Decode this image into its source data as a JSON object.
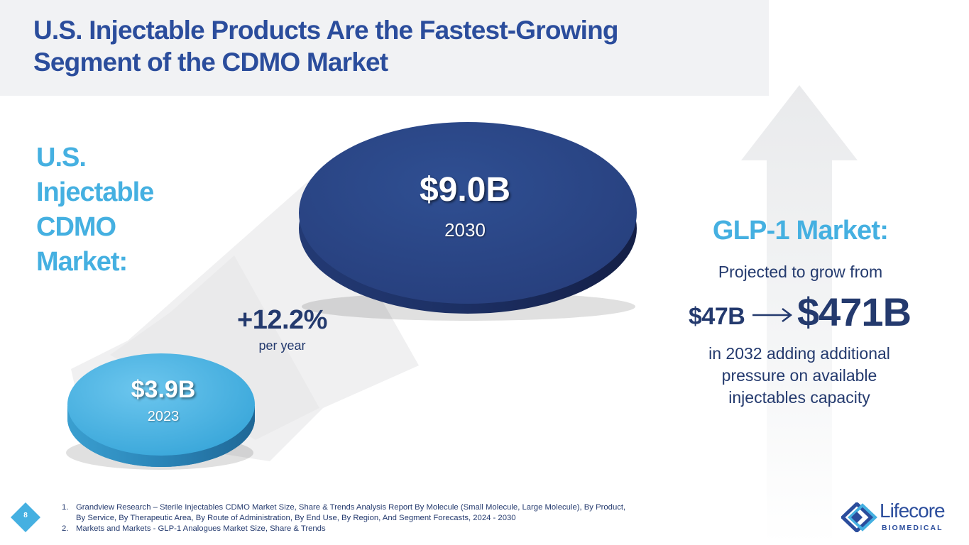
{
  "slide": {
    "title_line1": "U.S. Injectable Products Are the Fastest-Growing",
    "title_line2": "Segment of the CDMO Market",
    "page_number": "8"
  },
  "market": {
    "label_lines": [
      "U.S.",
      "Injectable",
      "CDMO",
      "Market:"
    ],
    "start": {
      "value": "$3.9B",
      "year": "2023",
      "color": "#45b0e1"
    },
    "end": {
      "value": "$9.0B",
      "year": "2030",
      "color": "#2b4585"
    },
    "growth": {
      "rate": "+12.2%",
      "period": "per year"
    }
  },
  "glp1": {
    "title": "GLP-1 Market:",
    "subtitle": "Projected to grow from",
    "from_value": "$47B",
    "to_value": "$471B",
    "desc_lines": [
      "in 2032 adding additional",
      "pressure on available",
      "injectables capacity"
    ]
  },
  "footnotes": [
    {
      "num": "1.",
      "lines": [
        "Grandview Research –  Sterile Injectables CDMO Market Size, Share & Trends Analysis Report By Molecule (Small Molecule, Large Molecule), By Product,",
        "By Service, By Therapeutic Area, By Route of Administration, By End Use, By Region, And Segment Forecasts, 2024 - 2030"
      ]
    },
    {
      "num": "2.",
      "lines": [
        "Markets and Markets -  GLP-1 Analogues Market Size, Share & Trends"
      ]
    }
  ],
  "logo": {
    "name": "Lifecore",
    "tagline": "BIOMEDICAL"
  },
  "colors": {
    "navy": "#2b4d9c",
    "accent": "#45b0e1",
    "text": "#243a6e"
  }
}
